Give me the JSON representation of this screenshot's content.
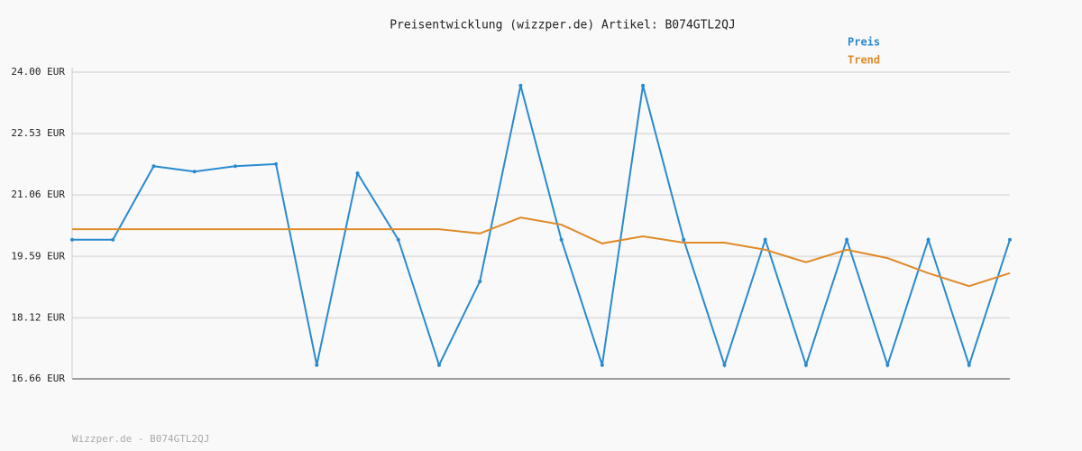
{
  "chart_data": {
    "type": "line",
    "title": "Preisentwicklung (wizzper.de) Artikel: B074GTL2QJ",
    "footer": "Wizzper.de - B074GTL2QJ",
    "categories": [
      null,
      null,
      null,
      null,
      null,
      null,
      null,
      null,
      null,
      null,
      null,
      null,
      null,
      null,
      null,
      null,
      null,
      null,
      null,
      null,
      null,
      null,
      null,
      null
    ],
    "series": [
      {
        "name": "Preis",
        "color": "#2a8ad0",
        "values": [
          19.99,
          19.99,
          21.75,
          21.62,
          21.75,
          21.8,
          16.99,
          21.58,
          19.99,
          16.99,
          18.99,
          23.68,
          19.99,
          16.99,
          23.68,
          19.99,
          16.99,
          19.99,
          16.99,
          19.99,
          16.99,
          19.99,
          16.99,
          19.99
        ]
      },
      {
        "name": "Trend",
        "color": "#e08a2a",
        "values": [
          20.24,
          20.24,
          20.24,
          20.24,
          20.24,
          20.24,
          20.24,
          20.24,
          20.24,
          20.24,
          20.14,
          20.52,
          20.35,
          19.9,
          20.07,
          19.92,
          19.92,
          19.75,
          19.45,
          19.75,
          19.55,
          19.19,
          18.88,
          19.19
        ]
      }
    ],
    "ylim": [
      16.66,
      24.0
    ],
    "yticks": [
      {
        "value": 16.66,
        "label": "16.66 EUR"
      },
      {
        "value": 18.12,
        "label": "18.12 EUR"
      },
      {
        "value": 19.59,
        "label": "19.59 EUR"
      },
      {
        "value": 21.06,
        "label": "21.06 EUR"
      },
      {
        "value": 22.53,
        "label": "22.53 EUR"
      },
      {
        "value": 24.0,
        "label": "24.00 EUR"
      }
    ],
    "grid": true
  }
}
